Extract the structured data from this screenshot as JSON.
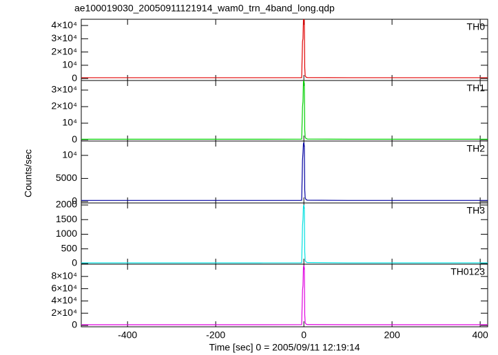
{
  "figure": {
    "title": "ae100019030_20050911121914_wam0_trn_4band_long.qdp",
    "xlabel": "Time [sec] 0 = 2005/09/11 12:19:14",
    "ylabel": "Counts/sec"
  },
  "chart_data": [
    {
      "type": "line",
      "title": "TH0",
      "xlim": [
        -505,
        417
      ],
      "xticks": [
        -400,
        -200,
        0,
        200,
        400
      ],
      "ylim": [
        -1500,
        44700
      ],
      "yticks": [
        0,
        {
          "value": 10000,
          "label": "10⁴"
        },
        {
          "value": 20000,
          "label": "2×10⁴"
        },
        {
          "value": 30000,
          "label": "3×10⁴"
        },
        {
          "value": 40000,
          "label": "4×10⁴"
        }
      ],
      "series": [
        {
          "name": "TH0",
          "color": "#e00000",
          "x": [
            -505,
            -300,
            -100,
            -8,
            -5,
            -3,
            -2,
            -1,
            0,
            1,
            2,
            3,
            5,
            8,
            100,
            300,
            417
          ],
          "values": [
            600,
            600,
            600,
            650,
            700,
            28000,
            30000,
            44000,
            44500,
            44000,
            8000,
            2000,
            1000,
            700,
            600,
            600,
            600
          ]
        }
      ]
    },
    {
      "type": "line",
      "title": "TH1",
      "xlim": [
        -505,
        417
      ],
      "xticks": [
        -400,
        -200,
        0,
        200,
        400
      ],
      "ylim": [
        -800,
        35800
      ],
      "yticks": [
        0,
        {
          "value": 10000,
          "label": "10⁴"
        },
        {
          "value": 20000,
          "label": "2×10⁴"
        },
        {
          "value": 30000,
          "label": "3×10⁴"
        }
      ],
      "series": [
        {
          "name": "TH1",
          "color": "#00d000",
          "x": [
            -505,
            -300,
            -100,
            -8,
            -5,
            -3,
            -2,
            -1,
            0,
            1,
            2,
            3,
            5,
            8,
            100,
            300,
            417
          ],
          "values": [
            300,
            300,
            300,
            320,
            350,
            20000,
            23000,
            35000,
            35500,
            34000,
            6000,
            1500,
            700,
            400,
            300,
            300,
            300
          ]
        }
      ]
    },
    {
      "type": "line",
      "title": "TH2",
      "xlim": [
        -505,
        417
      ],
      "xticks": [
        -400,
        -200,
        0,
        200,
        400
      ],
      "ylim": [
        -300,
        13100
      ],
      "yticks": [
        0,
        5000,
        {
          "value": 10000,
          "label": "10⁴"
        }
      ],
      "series": [
        {
          "name": "TH2",
          "color": "#0000a0",
          "x": [
            -505,
            -300,
            -100,
            -8,
            -5,
            -3,
            -2,
            -1,
            0,
            1,
            2,
            3,
            5,
            8,
            100,
            300,
            417
          ],
          "values": [
            250,
            250,
            250,
            260,
            280,
            9000,
            10500,
            12500,
            12800,
            12000,
            2500,
            800,
            400,
            300,
            250,
            250,
            250
          ]
        }
      ]
    },
    {
      "type": "line",
      "title": "TH3",
      "xlim": [
        -505,
        417
      ],
      "xticks": [
        -400,
        -200,
        0,
        200,
        400
      ],
      "ylim": [
        -25,
        2070
      ],
      "yticks": [
        0,
        500,
        1000,
        1500,
        2000
      ],
      "series": [
        {
          "name": "TH3",
          "color": "#00e0e0",
          "x": [
            -505,
            -300,
            -100,
            -8,
            -5,
            -3,
            -2,
            -1,
            0,
            1,
            2,
            3,
            5,
            8,
            100,
            300,
            417
          ],
          "values": [
            20,
            20,
            20,
            22,
            25,
            1300,
            1500,
            1950,
            2000,
            1900,
            400,
            100,
            50,
            30,
            20,
            20,
            20
          ]
        }
      ]
    },
    {
      "type": "line",
      "title": "TH0123",
      "xlim": [
        -505,
        417
      ],
      "xticks": [
        -400,
        -200,
        0,
        200,
        400
      ],
      "ylim": [
        -2200,
        100000
      ],
      "yticks": [
        0,
        {
          "value": 20000,
          "label": "2×10⁴"
        },
        {
          "value": 40000,
          "label": "4×10⁴"
        },
        {
          "value": 60000,
          "label": "6×10⁴"
        },
        {
          "value": 80000,
          "label": "8×10⁴"
        }
      ],
      "series": [
        {
          "name": "TH0123",
          "color": "#e000e0",
          "x": [
            -505,
            -300,
            -100,
            -8,
            -5,
            -3,
            -2,
            -1,
            0,
            1,
            2,
            3,
            5,
            8,
            100,
            300,
            417
          ],
          "values": [
            1200,
            1200,
            1200,
            1250,
            1350,
            58000,
            65000,
            95000,
            98000,
            94000,
            17000,
            4400,
            2150,
            1430,
            1200,
            1200,
            1200
          ]
        }
      ]
    }
  ]
}
